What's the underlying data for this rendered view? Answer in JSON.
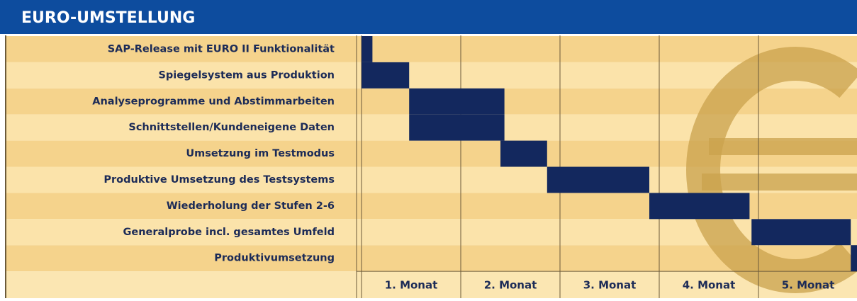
{
  "chart_data": {
    "type": "gantt",
    "title": "EURO-UMSTELLUNG",
    "categories": [
      "SAP-Release mit EURO II Funktionalität",
      "Spiegelsystem aus Produktion",
      "Analyseprogramme und Abstimmarbeiten",
      "Schnittstellen/Kundeneigene Daten",
      "Umsetzung im Testmodus",
      "Produktive Umsetzung des Testsystems",
      "Wiederholung der Stufen 2-6",
      "Generalprobe incl. gesamtes Umfeld",
      "Produktivumsetzung"
    ],
    "start": [
      0,
      0,
      0.48,
      0.48,
      1.4,
      1.87,
      2.9,
      3.93,
      4.93
    ],
    "end": [
      0.11,
      0.48,
      1.44,
      1.44,
      1.87,
      2.9,
      3.91,
      4.93,
      5
    ],
    "xlim": [
      0,
      5
    ],
    "xticks": [
      {
        "value": 0.5,
        "label": "1. Monat"
      },
      {
        "value": 1.5,
        "label": "2. Monat"
      },
      {
        "value": 2.5,
        "label": "3. Monat"
      },
      {
        "value": 3.5,
        "label": "4. Monat"
      },
      {
        "value": 4.5,
        "label": "5. Monat"
      }
    ],
    "color": "#13285e"
  }
}
